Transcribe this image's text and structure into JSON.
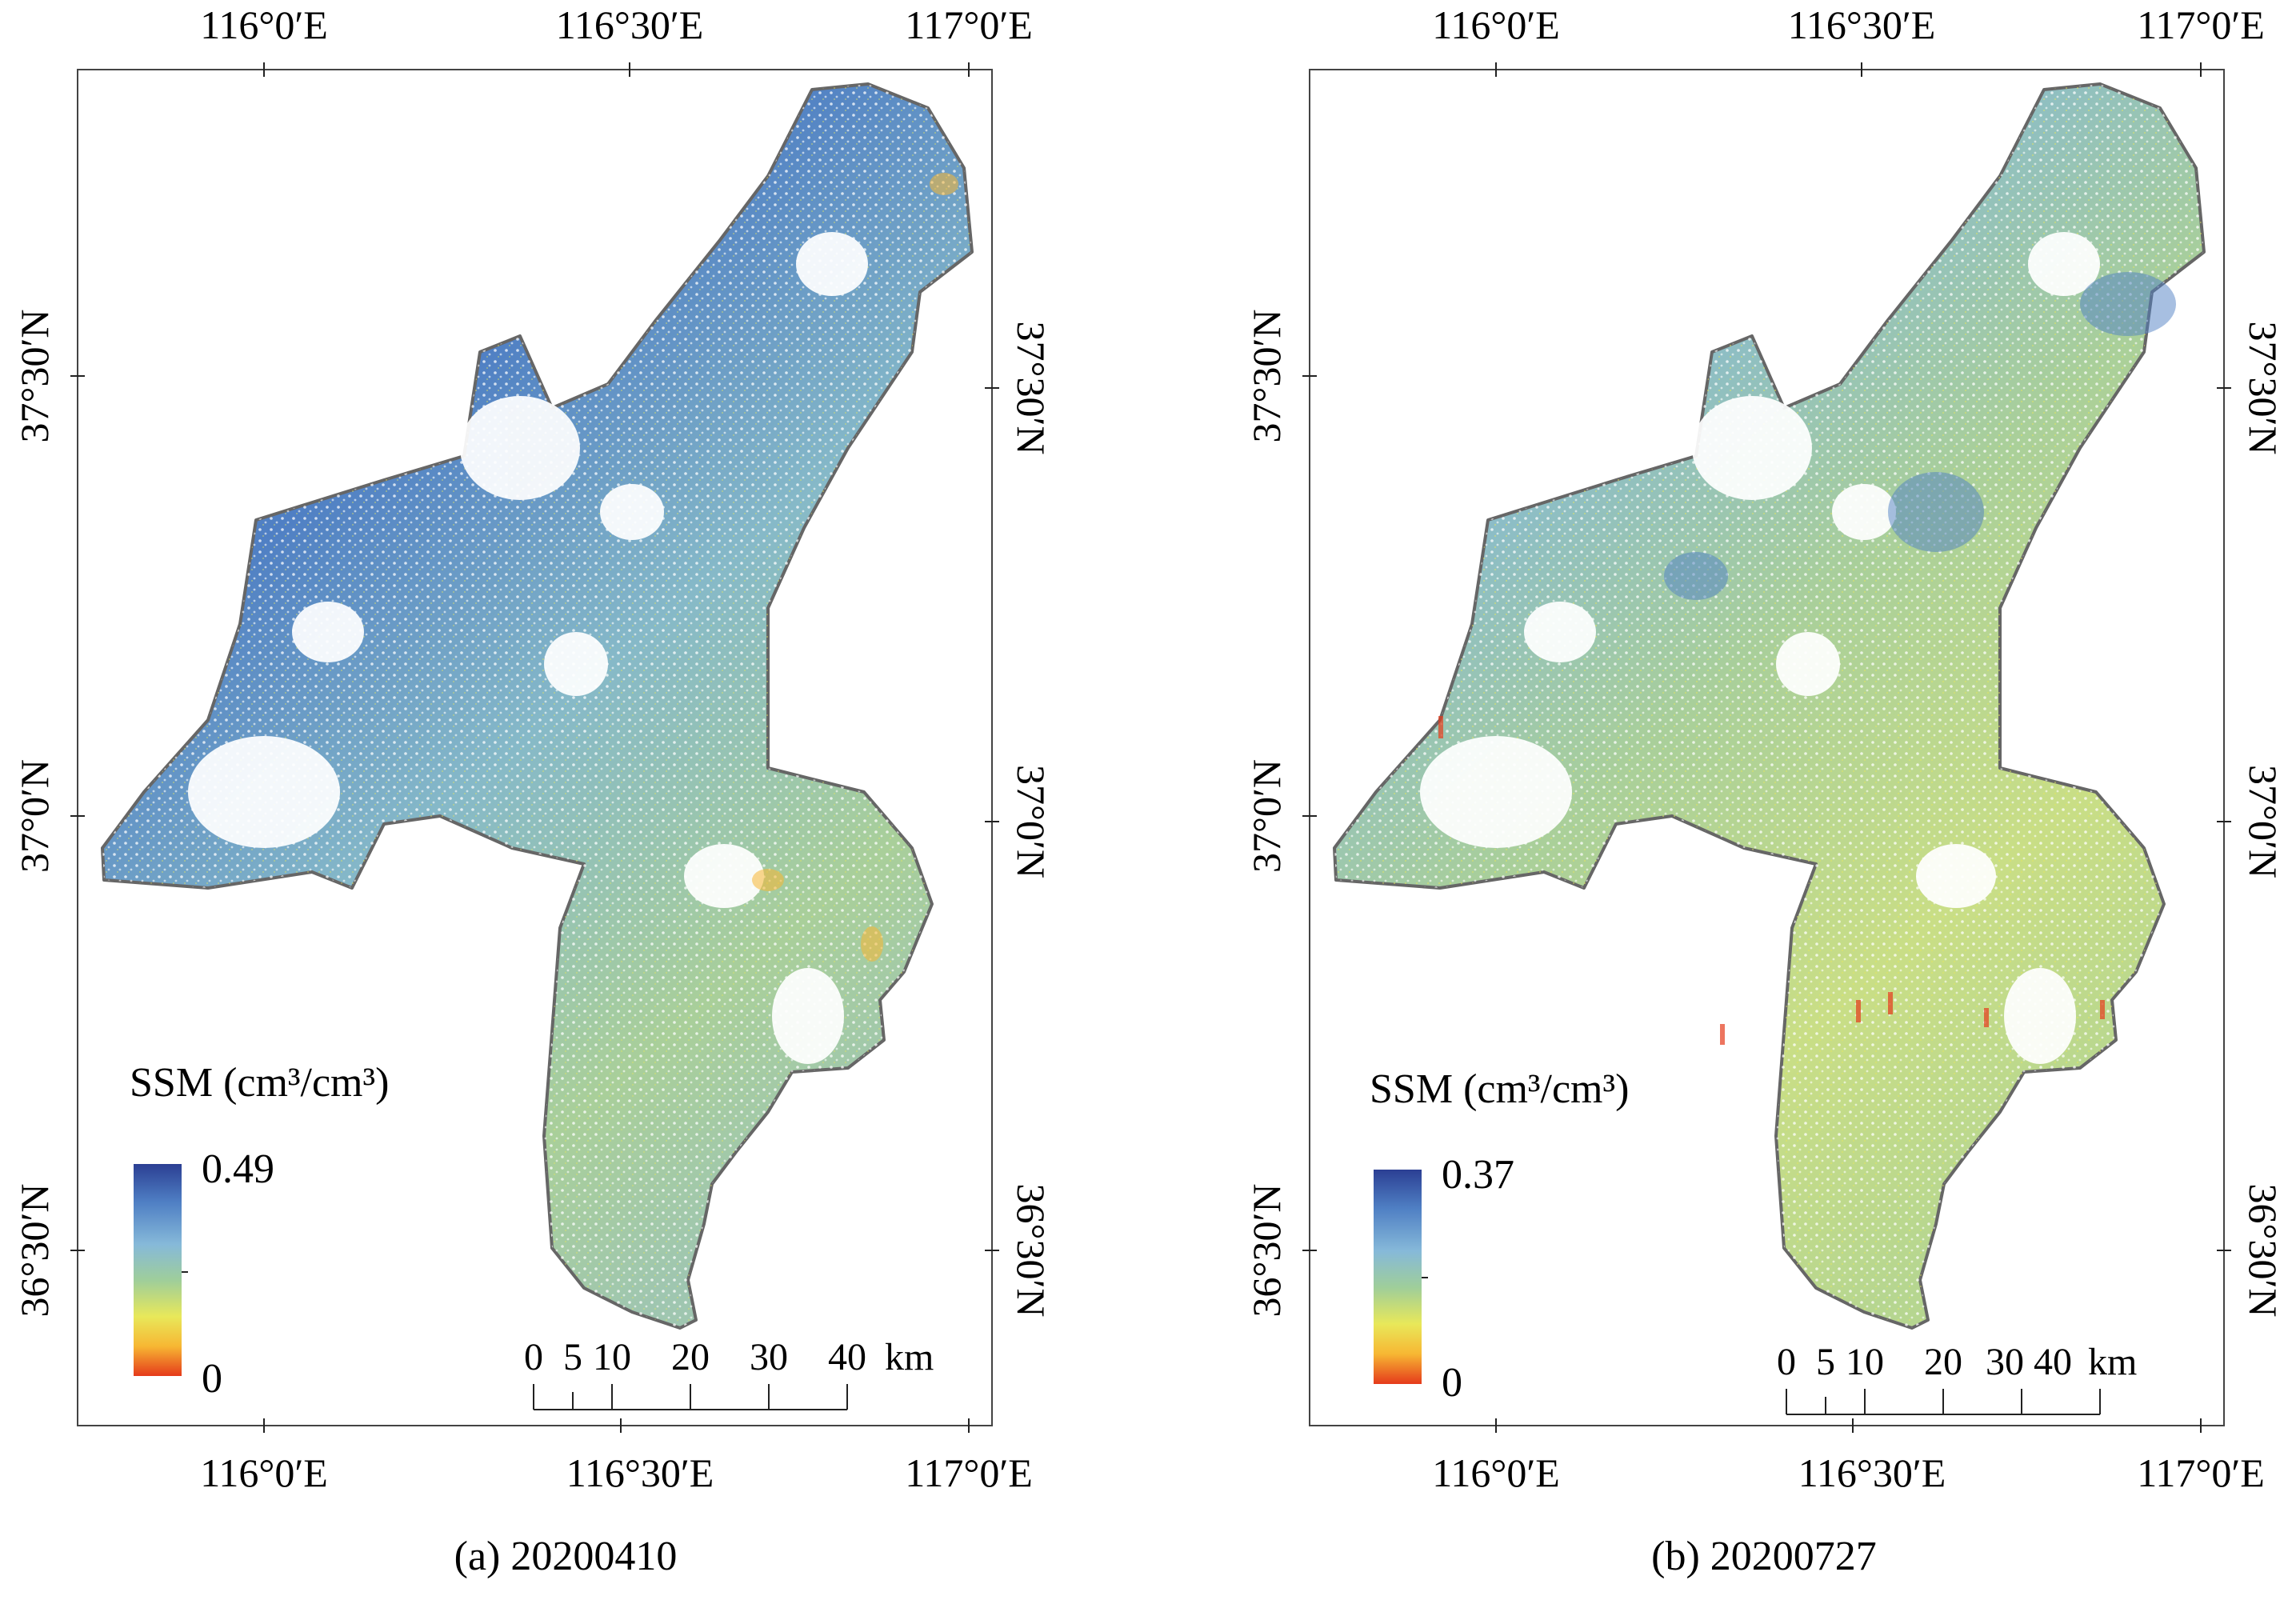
{
  "figure": {
    "panels": [
      {
        "id": "a",
        "caption": "(a) 20200410",
        "top_lon_labels": [
          "116°0′E",
          "116°30′E",
          "117°0′E"
        ],
        "bottom_lon_labels": [
          "116°0′E",
          "116°30′E",
          "117°0′E"
        ],
        "lat_labels": [
          "37°30′N",
          "37°0′N",
          "36°30′N"
        ],
        "legend": {
          "title": "SSM (cm³/cm³)",
          "max": "0.49",
          "min": "0",
          "colors": [
            "#2b3f93",
            "#4f7fc4",
            "#86b9d9",
            "#9fce9a",
            "#e8e85a",
            "#f7b733",
            "#e53a1b"
          ]
        },
        "scalebar": {
          "labels": [
            "0",
            "5",
            "10",
            "20",
            "30",
            "40"
          ],
          "unit": "km"
        }
      },
      {
        "id": "b",
        "caption": "(b) 20200727",
        "top_lon_labels": [
          "116°0′E",
          "116°30′E",
          "117°0′E"
        ],
        "bottom_lon_labels": [
          "116°0′E",
          "116°30′E",
          "117°0′E"
        ],
        "lat_labels": [
          "37°30′N",
          "37°0′N",
          "36°30′N"
        ],
        "legend": {
          "title": "SSM (cm³/cm³)",
          "max": "0.37",
          "min": "0",
          "colors": [
            "#2b3f93",
            "#4f7fc4",
            "#86b9d9",
            "#9fce9a",
            "#e8e85a",
            "#f7b733",
            "#e53a1b"
          ]
        },
        "scalebar": {
          "labels": [
            "0",
            "5",
            "10",
            "20",
            "30",
            "40"
          ],
          "unit": "km"
        }
      }
    ]
  }
}
